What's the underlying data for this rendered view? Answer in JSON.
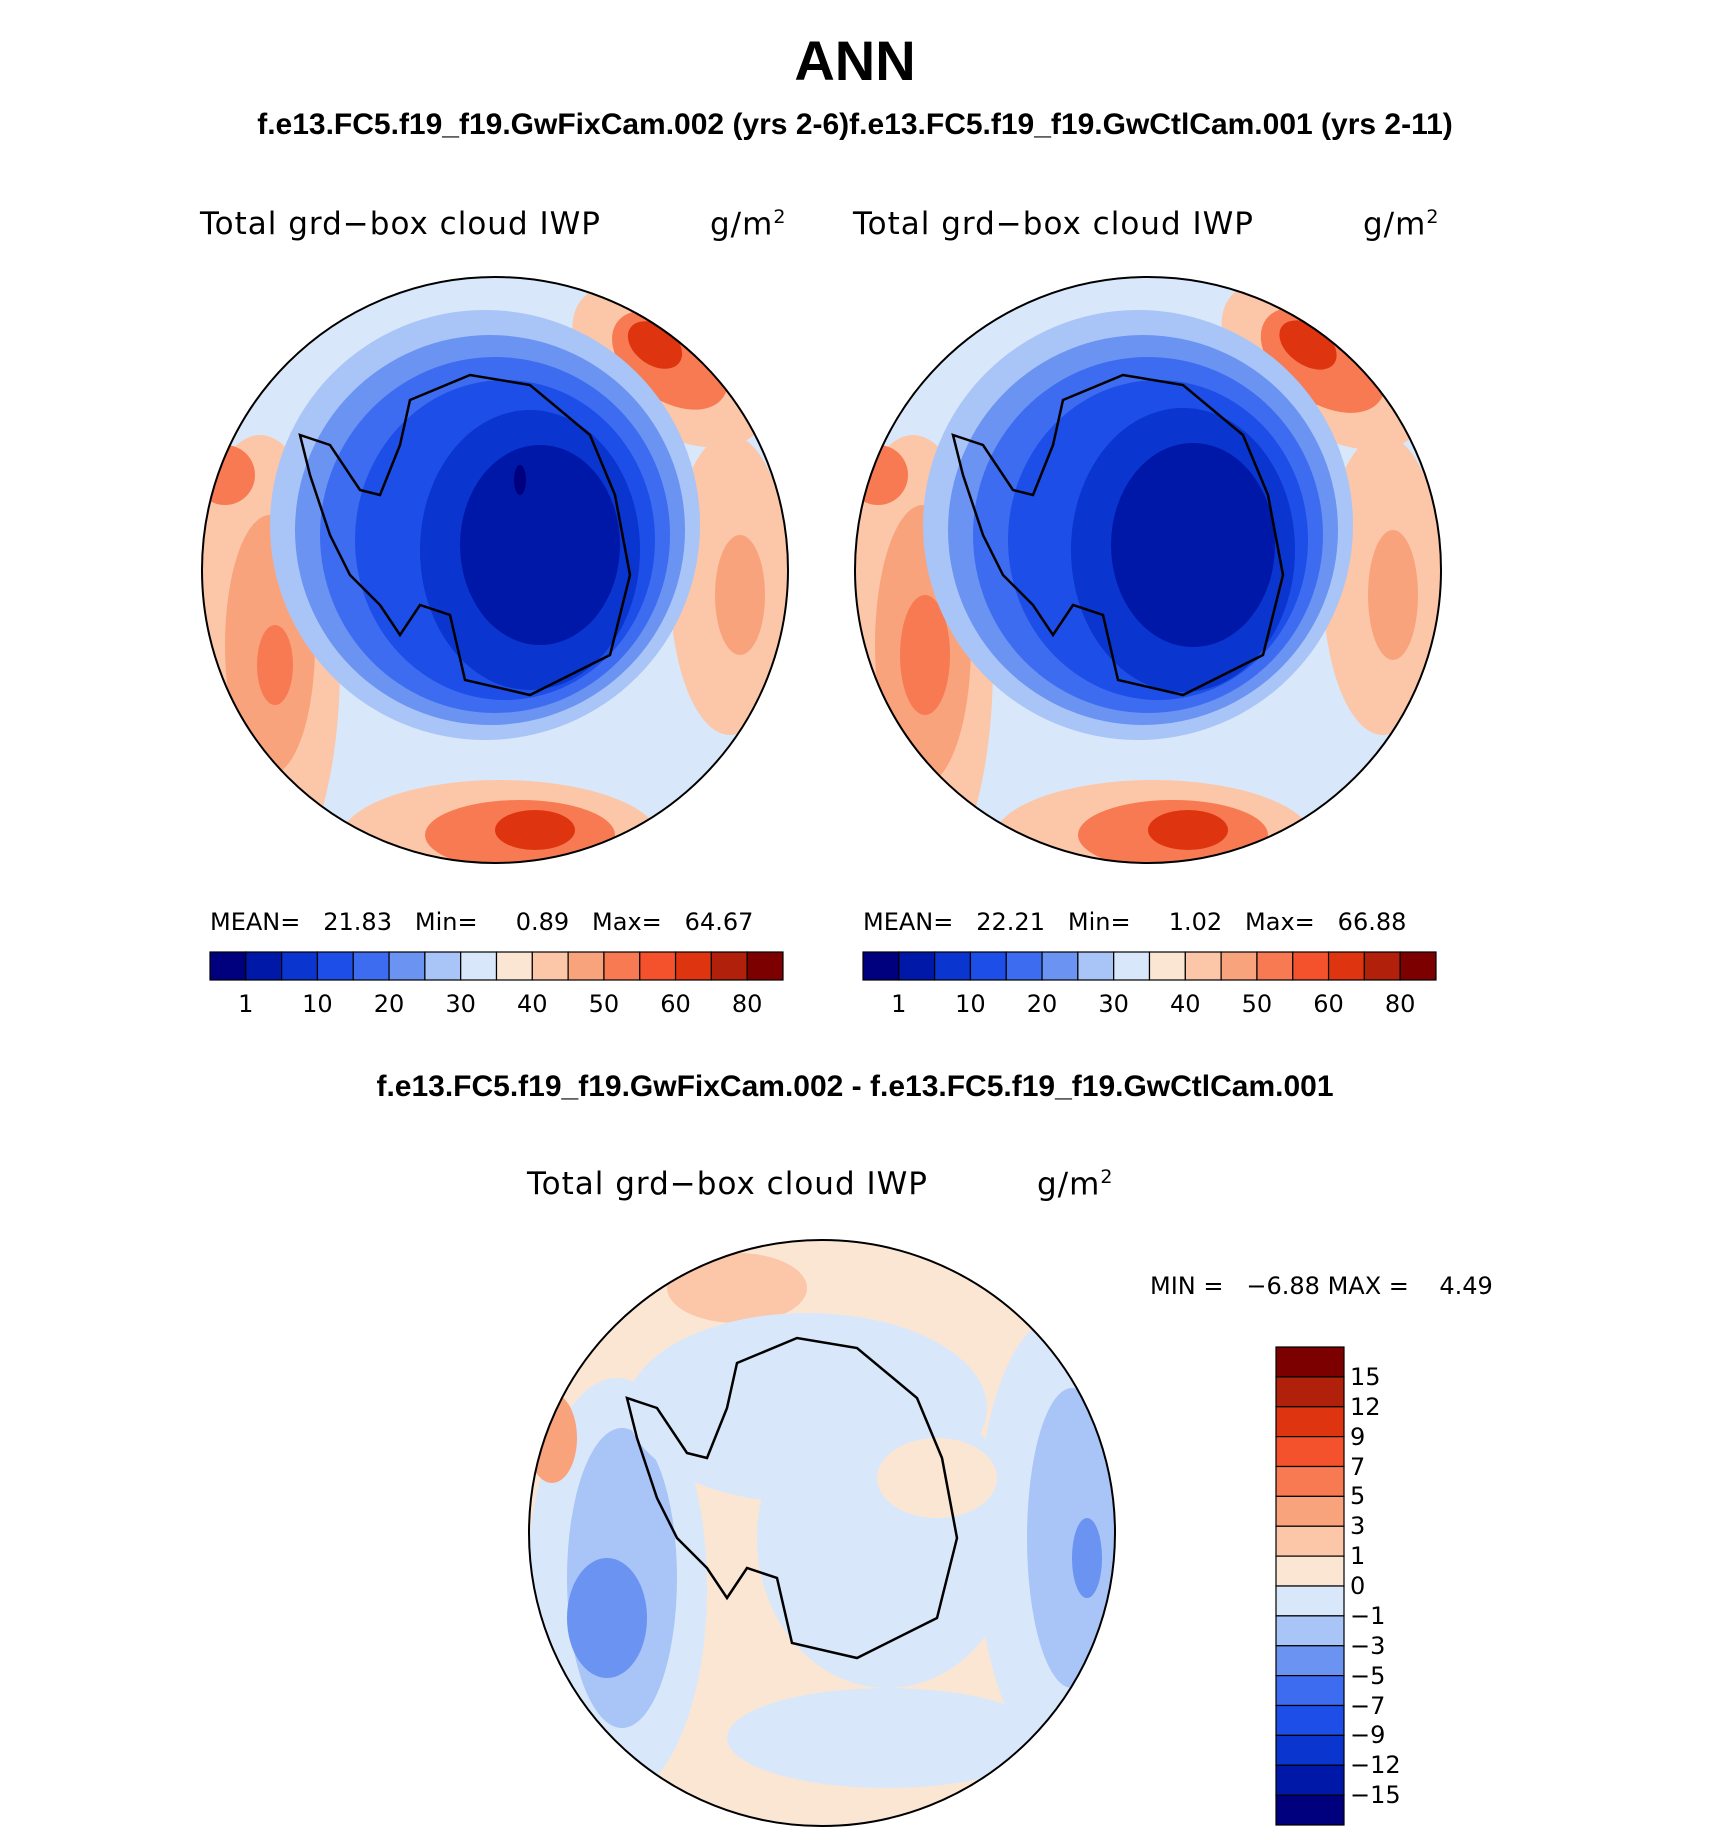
{
  "figure": {
    "season": "ANN",
    "case_header": "f.e13.FC5.f19_f19.GwFixCam.002 (yrs 2-6)f.e13.FC5.f19_f19.GwCtlCam.001 (yrs 2-11)",
    "diff_header": "f.e13.FC5.f19_f19.GwFixCam.002 - f.e13.FC5.f19_f19.GwCtlCam.001"
  },
  "panels": [
    {
      "title": "Total grd−box cloud IWP",
      "units_base": "g/m",
      "units_exp": "2",
      "mean_label": "MEAN=",
      "mean": "21.83",
      "min_label": "Min=",
      "min": "0.89",
      "max_label": "Max=",
      "max": "64.67",
      "colorbar_labels": [
        "1",
        "10",
        "20",
        "30",
        "40",
        "50",
        "60",
        "80"
      ]
    },
    {
      "title": "Total grd−box cloud IWP",
      "units_base": "g/m",
      "units_exp": "2",
      "mean_label": "MEAN=",
      "mean": "22.21",
      "min_label": "Min=",
      "min": "1.02",
      "max_label": "Max=",
      "max": "66.88",
      "colorbar_labels": [
        "1",
        "10",
        "20",
        "30",
        "40",
        "50",
        "60",
        "80"
      ]
    }
  ],
  "diff_panel": {
    "title": "Total grd−box cloud IWP",
    "units_base": "g/m",
    "units_exp": "2",
    "min_label": "MIN =",
    "min": "−6.88",
    "max_label": "MAX =",
    "max": "4.49",
    "colorbar_labels": [
      "15",
      "12",
      "9",
      "7",
      "5",
      "3",
      "1",
      "0",
      "−1",
      "−3",
      "−5",
      "−7",
      "−9",
      "−12",
      "−15"
    ]
  },
  "colors": {
    "field_scale": [
      "#00007f",
      "#0018a8",
      "#0a35cf",
      "#1d4ee8",
      "#3d6cf0",
      "#6a93f2",
      "#a9c4f7",
      "#d8e8fa",
      "#fbe6d4",
      "#fcc6a9",
      "#f9a37c",
      "#f77a52",
      "#f4522d",
      "#de3510",
      "#b0200a",
      "#7c0000"
    ],
    "diff_scale": [
      "#7c0000",
      "#b0200a",
      "#de3510",
      "#f4522d",
      "#f77a52",
      "#f9a37c",
      "#fcc6a9",
      "#fbe6d4",
      "#d8e8fa",
      "#a9c4f7",
      "#6a93f2",
      "#3d6cf0",
      "#1d4ee8",
      "#0a35cf",
      "#0018a8",
      "#00007f"
    ]
  }
}
